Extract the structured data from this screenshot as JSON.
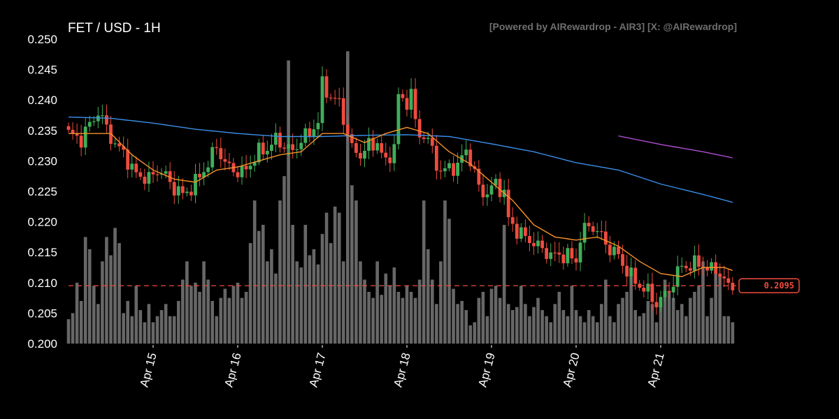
{
  "chart_data": {
    "type": "candlestick",
    "title": "FET / USD - 1H",
    "credit": "[Powered by AIRewardrop - AIR3] [X: @AIRewardrop]",
    "ylim": [
      0.2,
      0.25
    ],
    "y_ticks": [
      "0.250",
      "0.245",
      "0.240",
      "0.235",
      "0.230",
      "0.225",
      "0.220",
      "0.215",
      "0.210",
      "0.205",
      "0.200"
    ],
    "x_ticks": [
      {
        "label": "Apr 15",
        "index": 20
      },
      {
        "label": "Apr 16",
        "index": 40
      },
      {
        "label": "Apr 17",
        "index": 60
      },
      {
        "label": "Apr 18",
        "index": 80
      },
      {
        "label": "Apr 19",
        "index": 100
      },
      {
        "label": "Apr 20",
        "index": 120
      },
      {
        "label": "Apr 21",
        "index": 140
      }
    ],
    "last_price": 0.2095,
    "last_price_label": "0.2095",
    "colors": {
      "up": "#3fae5a",
      "down": "#ef4b3f",
      "volume": "#8a8a8a",
      "ema_short": "#f5922a",
      "ema_long": "#3b8fe8",
      "ema_longest": "#b04ecf"
    },
    "price_anchors": [
      [
        0,
        0.2345
      ],
      [
        3,
        0.2335
      ],
      [
        5,
        0.236
      ],
      [
        7,
        0.238
      ],
      [
        9,
        0.2355
      ],
      [
        11,
        0.2325
      ],
      [
        13,
        0.2315
      ],
      [
        15,
        0.2285
      ],
      [
        17,
        0.2275
      ],
      [
        19,
        0.227
      ],
      [
        21,
        0.2285
      ],
      [
        23,
        0.2275
      ],
      [
        25,
        0.2255
      ],
      [
        27,
        0.2245
      ],
      [
        29,
        0.2255
      ],
      [
        31,
        0.2275
      ],
      [
        33,
        0.2295
      ],
      [
        35,
        0.2325
      ],
      [
        37,
        0.2295
      ],
      [
        39,
        0.2285
      ],
      [
        41,
        0.228
      ],
      [
        43,
        0.2295
      ],
      [
        45,
        0.2315
      ],
      [
        47,
        0.232
      ],
      [
        49,
        0.2335
      ],
      [
        51,
        0.2325
      ],
      [
        53,
        0.2315
      ],
      [
        55,
        0.2335
      ],
      [
        57,
        0.2345
      ],
      [
        59,
        0.2365
      ],
      [
        60,
        0.2425
      ],
      [
        62,
        0.2405
      ],
      [
        64,
        0.2395
      ],
      [
        65,
        0.237
      ],
      [
        67,
        0.232
      ],
      [
        69,
        0.231
      ],
      [
        71,
        0.2325
      ],
      [
        73,
        0.233
      ],
      [
        75,
        0.2295
      ],
      [
        77,
        0.2325
      ],
      [
        78,
        0.2405
      ],
      [
        80,
        0.2395
      ],
      [
        81,
        0.2415
      ],
      [
        82,
        0.236
      ],
      [
        83,
        0.2345
      ],
      [
        85,
        0.2335
      ],
      [
        86,
        0.2315
      ],
      [
        88,
        0.228
      ],
      [
        90,
        0.229
      ],
      [
        92,
        0.229
      ],
      [
        94,
        0.232
      ],
      [
        96,
        0.228
      ],
      [
        97,
        0.2255
      ],
      [
        99,
        0.2245
      ],
      [
        101,
        0.2265
      ],
      [
        103,
        0.2245
      ],
      [
        104,
        0.2205
      ],
      [
        106,
        0.2185
      ],
      [
        108,
        0.2175
      ],
      [
        110,
        0.2165
      ],
      [
        112,
        0.2155
      ],
      [
        114,
        0.2145
      ],
      [
        116,
        0.2145
      ],
      [
        118,
        0.2145
      ],
      [
        120,
        0.2135
      ],
      [
        121,
        0.2175
      ],
      [
        123,
        0.2195
      ],
      [
        125,
        0.2185
      ],
      [
        126,
        0.2175
      ],
      [
        128,
        0.2155
      ],
      [
        130,
        0.2145
      ],
      [
        131,
        0.213
      ],
      [
        133,
        0.211
      ],
      [
        135,
        0.2095
      ],
      [
        137,
        0.2085
      ],
      [
        139,
        0.2065
      ],
      [
        141,
        0.208
      ],
      [
        143,
        0.21
      ],
      [
        145,
        0.213
      ],
      [
        147,
        0.2125
      ],
      [
        149,
        0.2135
      ],
      [
        151,
        0.212
      ],
      [
        153,
        0.2125
      ],
      [
        155,
        0.21
      ],
      [
        157,
        0.2095
      ]
    ],
    "volume_anchors": [
      [
        0,
        0.204
      ],
      [
        1,
        0.205
      ],
      [
        2,
        0.21
      ],
      [
        3,
        0.207
      ],
      [
        4,
        0.2175
      ],
      [
        5,
        0.2155
      ],
      [
        6,
        0.2095
      ],
      [
        7,
        0.2065
      ],
      [
        8,
        0.2135
      ],
      [
        9,
        0.2175
      ],
      [
        10,
        0.2145
      ],
      [
        11,
        0.219
      ],
      [
        12,
        0.2165
      ],
      [
        13,
        0.205
      ],
      [
        14,
        0.207
      ],
      [
        15,
        0.2045
      ],
      [
        16,
        0.2095
      ],
      [
        17,
        0.2055
      ],
      [
        18,
        0.2035
      ],
      [
        19,
        0.2065
      ],
      [
        20,
        0.2035
      ],
      [
        21,
        0.2045
      ],
      [
        22,
        0.2055
      ],
      [
        23,
        0.2065
      ],
      [
        24,
        0.2045
      ],
      [
        25,
        0.2045
      ],
      [
        26,
        0.207
      ],
      [
        27,
        0.2105
      ],
      [
        28,
        0.2135
      ],
      [
        29,
        0.2095
      ],
      [
        30,
        0.21
      ],
      [
        31,
        0.2085
      ],
      [
        32,
        0.2135
      ],
      [
        33,
        0.2105
      ],
      [
        34,
        0.207
      ],
      [
        35,
        0.2045
      ],
      [
        36,
        0.2075
      ],
      [
        37,
        0.209
      ],
      [
        38,
        0.2075
      ],
      [
        39,
        0.2095
      ],
      [
        40,
        0.21
      ],
      [
        41,
        0.2075
      ],
      [
        42,
        0.2085
      ],
      [
        43,
        0.2165
      ],
      [
        44,
        0.2235
      ],
      [
        45,
        0.2185
      ],
      [
        46,
        0.2195
      ],
      [
        47,
        0.2135
      ],
      [
        48,
        0.2155
      ],
      [
        49,
        0.2115
      ],
      [
        50,
        0.2235
      ],
      [
        51,
        0.2275
      ],
      [
        52,
        0.2465
      ],
      [
        53,
        0.2195
      ],
      [
        54,
        0.2135
      ],
      [
        55,
        0.2125
      ],
      [
        56,
        0.2195
      ],
      [
        57,
        0.2145
      ],
      [
        58,
        0.2155
      ],
      [
        59,
        0.213
      ],
      [
        60,
        0.218
      ],
      [
        61,
        0.2215
      ],
      [
        62,
        0.2165
      ],
      [
        63,
        0.2225
      ],
      [
        64,
        0.2215
      ],
      [
        65,
        0.2135
      ],
      [
        66,
        0.248
      ],
      [
        67,
        0.226
      ],
      [
        68,
        0.2235
      ],
      [
        69,
        0.2135
      ],
      [
        70,
        0.2105
      ],
      [
        71,
        0.2085
      ],
      [
        72,
        0.2075
      ],
      [
        73,
        0.2135
      ],
      [
        74,
        0.208
      ],
      [
        75,
        0.2115
      ],
      [
        76,
        0.2095
      ],
      [
        77,
        0.2125
      ],
      [
        78,
        0.2085
      ],
      [
        79,
        0.2075
      ],
      [
        80,
        0.2095
      ],
      [
        81,
        0.2085
      ],
      [
        82,
        0.2075
      ],
      [
        83,
        0.2105
      ],
      [
        84,
        0.2235
      ],
      [
        85,
        0.2155
      ],
      [
        86,
        0.2105
      ],
      [
        87,
        0.2065
      ],
      [
        88,
        0.2135
      ],
      [
        89,
        0.2235
      ],
      [
        90,
        0.2205
      ],
      [
        91,
        0.209
      ],
      [
        92,
        0.2065
      ],
      [
        93,
        0.207
      ],
      [
        94,
        0.2055
      ],
      [
        95,
        0.203
      ],
      [
        96,
        0.2035
      ],
      [
        97,
        0.2075
      ],
      [
        98,
        0.2085
      ],
      [
        99,
        0.2045
      ],
      [
        100,
        0.209
      ],
      [
        101,
        0.2095
      ],
      [
        102,
        0.2075
      ],
      [
        103,
        0.2195
      ],
      [
        104,
        0.2065
      ],
      [
        105,
        0.2055
      ],
      [
        106,
        0.206
      ],
      [
        107,
        0.2095
      ],
      [
        108,
        0.2065
      ],
      [
        109,
        0.2045
      ],
      [
        110,
        0.206
      ],
      [
        111,
        0.2075
      ],
      [
        112,
        0.2055
      ],
      [
        113,
        0.2045
      ],
      [
        114,
        0.2035
      ],
      [
        115,
        0.2065
      ],
      [
        116,
        0.2085
      ],
      [
        117,
        0.2055
      ],
      [
        118,
        0.2045
      ],
      [
        119,
        0.2095
      ],
      [
        120,
        0.2055
      ],
      [
        121,
        0.2045
      ],
      [
        122,
        0.2035
      ],
      [
        123,
        0.2055
      ],
      [
        124,
        0.2045
      ],
      [
        125,
        0.2035
      ],
      [
        126,
        0.2065
      ],
      [
        127,
        0.2105
      ],
      [
        128,
        0.2045
      ],
      [
        129,
        0.2035
      ],
      [
        130,
        0.2065
      ],
      [
        131,
        0.2075
      ],
      [
        132,
        0.2085
      ],
      [
        133,
        0.2125
      ],
      [
        134,
        0.2055
      ],
      [
        135,
        0.2045
      ],
      [
        136,
        0.205
      ],
      [
        137,
        0.207
      ],
      [
        138,
        0.2065
      ],
      [
        139,
        0.2035
      ],
      [
        140,
        0.2065
      ],
      [
        141,
        0.2105
      ],
      [
        142,
        0.2085
      ],
      [
        143,
        0.2075
      ],
      [
        144,
        0.2055
      ],
      [
        145,
        0.2065
      ],
      [
        146,
        0.2045
      ],
      [
        147,
        0.2075
      ],
      [
        148,
        0.2085
      ],
      [
        149,
        0.2095
      ],
      [
        150,
        0.2135
      ],
      [
        151,
        0.2045
      ],
      [
        152,
        0.2075
      ],
      [
        153,
        0.2125
      ],
      [
        154,
        0.2115
      ],
      [
        155,
        0.2045
      ],
      [
        156,
        0.2045
      ],
      [
        157,
        0.2035
      ]
    ],
    "ema_short_anchors": [
      [
        0,
        0.2345
      ],
      [
        5,
        0.2345
      ],
      [
        10,
        0.2345
      ],
      [
        15,
        0.231
      ],
      [
        20,
        0.2285
      ],
      [
        25,
        0.227
      ],
      [
        30,
        0.2265
      ],
      [
        35,
        0.2285
      ],
      [
        40,
        0.229
      ],
      [
        45,
        0.23
      ],
      [
        50,
        0.231
      ],
      [
        55,
        0.2315
      ],
      [
        60,
        0.2345
      ],
      [
        65,
        0.2345
      ],
      [
        70,
        0.233
      ],
      [
        75,
        0.2345
      ],
      [
        80,
        0.2355
      ],
      [
        85,
        0.2345
      ],
      [
        90,
        0.2315
      ],
      [
        95,
        0.2295
      ],
      [
        100,
        0.2265
      ],
      [
        105,
        0.2235
      ],
      [
        110,
        0.2195
      ],
      [
        115,
        0.2175
      ],
      [
        120,
        0.217
      ],
      [
        125,
        0.2175
      ],
      [
        130,
        0.216
      ],
      [
        135,
        0.2135
      ],
      [
        140,
        0.2115
      ],
      [
        145,
        0.211
      ],
      [
        150,
        0.2125
      ],
      [
        155,
        0.2125
      ],
      [
        157,
        0.212
      ]
    ],
    "ema_long_anchors": [
      [
        0,
        0.2372
      ],
      [
        10,
        0.237
      ],
      [
        20,
        0.2362
      ],
      [
        30,
        0.2352
      ],
      [
        40,
        0.2345
      ],
      [
        50,
        0.234
      ],
      [
        60,
        0.234
      ],
      [
        70,
        0.2342
      ],
      [
        80,
        0.2343
      ],
      [
        90,
        0.234
      ],
      [
        100,
        0.2328
      ],
      [
        110,
        0.2315
      ],
      [
        120,
        0.2297
      ],
      [
        130,
        0.2285
      ],
      [
        140,
        0.2262
      ],
      [
        150,
        0.2245
      ],
      [
        157,
        0.2232
      ]
    ],
    "ema_longest_anchors": [
      [
        130,
        0.2341
      ],
      [
        140,
        0.2327
      ],
      [
        150,
        0.2315
      ],
      [
        157,
        0.2305
      ]
    ]
  }
}
